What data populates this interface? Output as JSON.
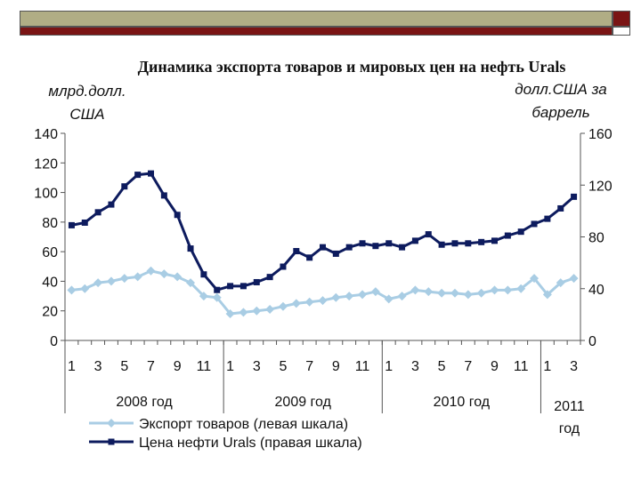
{
  "colors": {
    "banner_olive": "#b0ad85",
    "banner_red": "#7a1414",
    "export_series": "#a9cde4",
    "oil_series": "#0d1b5e"
  },
  "chart_data": {
    "type": "line",
    "title": "Динамика экспорта товаров и мировых цен на нефть Urals",
    "ylabel_left": "млрд.долл. США",
    "ylabel_right": "долл.США за баррель",
    "ylim_left": [
      0,
      140
    ],
    "ylim_right": [
      0,
      160
    ],
    "yticks_left": [
      "0",
      "20",
      "40",
      "60",
      "80",
      "100",
      "120",
      "140"
    ],
    "yticks_right": [
      "0",
      "40",
      "80",
      "120",
      "160"
    ],
    "x_tick_labels": [
      "1",
      "3",
      "5",
      "7",
      "9",
      "11",
      "1",
      "3",
      "5",
      "7",
      "9",
      "11",
      "1",
      "3",
      "5",
      "7",
      "9",
      "11",
      "1",
      "3"
    ],
    "year_groups": [
      {
        "label": "2008 год",
        "start": 0,
        "count": 12
      },
      {
        "label": "2009 год",
        "start": 12,
        "count": 12
      },
      {
        "label": "2010 год",
        "start": 24,
        "count": 12
      },
      {
        "label": "2011 год",
        "start": 36,
        "count": 3
      }
    ],
    "series": [
      {
        "name": "Экспорт товаров (левая шкала)",
        "axis": "left",
        "marker": "diamond",
        "values": [
          34,
          35,
          39,
          40,
          42,
          43,
          47,
          45,
          43,
          39,
          30,
          29,
          18,
          19,
          20,
          21,
          23,
          25,
          26,
          27,
          29,
          30,
          31,
          33,
          28,
          30,
          34,
          33,
          32,
          32,
          31,
          32,
          34,
          34,
          35,
          42,
          31,
          39,
          42
        ]
      },
      {
        "name": "Цена нефти Urals (правая шкала)",
        "axis": "right",
        "marker": "square",
        "values": [
          89,
          91,
          99,
          105,
          119,
          128,
          129,
          112,
          97,
          71,
          51,
          39,
          42,
          42,
          45,
          49,
          57,
          69,
          64,
          72,
          67,
          72,
          75,
          73,
          75,
          72,
          77,
          82,
          74,
          75,
          75,
          76,
          77,
          81,
          84,
          90,
          94,
          102,
          111
        ]
      }
    ]
  }
}
